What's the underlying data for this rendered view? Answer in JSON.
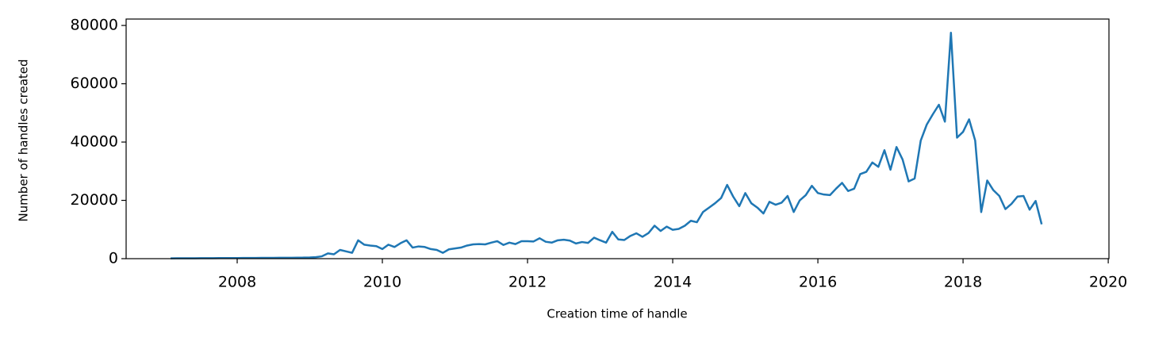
{
  "chart_data": {
    "type": "line",
    "x_label": "Creation time of handle",
    "y_label": "Number of handles created",
    "x": [
      2007.083,
      2007.167,
      2007.25,
      2007.333,
      2007.417,
      2007.5,
      2007.583,
      2007.667,
      2007.75,
      2007.833,
      2007.917,
      2008.0,
      2008.083,
      2008.167,
      2008.25,
      2008.333,
      2008.417,
      2008.5,
      2008.583,
      2008.667,
      2008.75,
      2008.833,
      2008.917,
      2009.0,
      2009.083,
      2009.167,
      2009.25,
      2009.333,
      2009.417,
      2009.5,
      2009.583,
      2009.667,
      2009.75,
      2009.833,
      2009.917,
      2010.0,
      2010.083,
      2010.167,
      2010.25,
      2010.333,
      2010.417,
      2010.5,
      2010.583,
      2010.667,
      2010.75,
      2010.833,
      2010.917,
      2011.0,
      2011.083,
      2011.167,
      2011.25,
      2011.333,
      2011.417,
      2011.5,
      2011.583,
      2011.667,
      2011.75,
      2011.833,
      2011.917,
      2012.0,
      2012.083,
      2012.167,
      2012.25,
      2012.333,
      2012.417,
      2012.5,
      2012.583,
      2012.667,
      2012.75,
      2012.833,
      2012.917,
      2013.0,
      2013.083,
      2013.167,
      2013.25,
      2013.333,
      2013.417,
      2013.5,
      2013.583,
      2013.667,
      2013.75,
      2013.833,
      2013.917,
      2014.0,
      2014.083,
      2014.167,
      2014.25,
      2014.333,
      2014.417,
      2014.5,
      2014.583,
      2014.667,
      2014.75,
      2014.833,
      2014.917,
      2015.0,
      2015.083,
      2015.167,
      2015.25,
      2015.333,
      2015.417,
      2015.5,
      2015.583,
      2015.667,
      2015.75,
      2015.833,
      2015.917,
      2016.0,
      2016.083,
      2016.167,
      2016.25,
      2016.333,
      2016.417,
      2016.5,
      2016.583,
      2016.667,
      2016.75,
      2016.833,
      2016.917,
      2017.0,
      2017.083,
      2017.167,
      2017.25,
      2017.333,
      2017.417,
      2017.5,
      2017.583,
      2017.667,
      2017.75,
      2017.833,
      2017.917,
      2018.0,
      2018.083,
      2018.167,
      2018.25,
      2018.333,
      2018.417,
      2018.5,
      2018.583,
      2018.667,
      2018.75,
      2018.833,
      2018.917,
      2019.0,
      2019.083
    ],
    "series": [
      {
        "color": "#1f77b4",
        "values": [
          100,
          120,
          130,
          150,
          150,
          160,
          170,
          180,
          190,
          200,
          210,
          220,
          230,
          240,
          250,
          260,
          270,
          280,
          290,
          300,
          320,
          340,
          360,
          400,
          500,
          800,
          1800,
          1500,
          3000,
          2500,
          2000,
          6300,
          4800,
          4500,
          4300,
          3300,
          4800,
          4000,
          5300,
          6300,
          3800,
          4200,
          4000,
          3300,
          3000,
          2000,
          3200,
          3500,
          3800,
          4500,
          4900,
          5000,
          4900,
          5500,
          6000,
          4700,
          5500,
          5000,
          6000,
          6000,
          5900,
          7000,
          5800,
          5500,
          6300,
          6500,
          6200,
          5200,
          5700,
          5400,
          7200,
          6300,
          5500,
          9200,
          6600,
          6400,
          7800,
          8700,
          7500,
          8800,
          11300,
          9500,
          11000,
          9900,
          10200,
          11300,
          13000,
          12500,
          16000,
          17500,
          19000,
          20800,
          25300,
          21300,
          18000,
          22500,
          19000,
          17500,
          15500,
          19500,
          18500,
          19200,
          21500,
          16000,
          20000,
          21800,
          25000,
          22500,
          22000,
          21800,
          24000,
          26000,
          23200,
          24000,
          29000,
          29800,
          33000,
          31500,
          37200,
          30500,
          38300,
          34000,
          26500,
          27500,
          40500,
          46000,
          49500,
          52800,
          47000,
          77500,
          41500,
          43500,
          47800,
          40500,
          16000,
          26800,
          23500,
          21500,
          17000,
          18800,
          21300,
          21500,
          16800,
          19800,
          11800
        ]
      }
    ],
    "xlim": [
      2006.47,
      2020.01
    ],
    "xticks": [
      2008,
      2010,
      2012,
      2014,
      2016,
      2018,
      2020
    ],
    "ylim": [
      0,
      82200
    ],
    "yticks": [
      0,
      20000,
      40000,
      60000,
      80000
    ],
    "grid": false
  }
}
